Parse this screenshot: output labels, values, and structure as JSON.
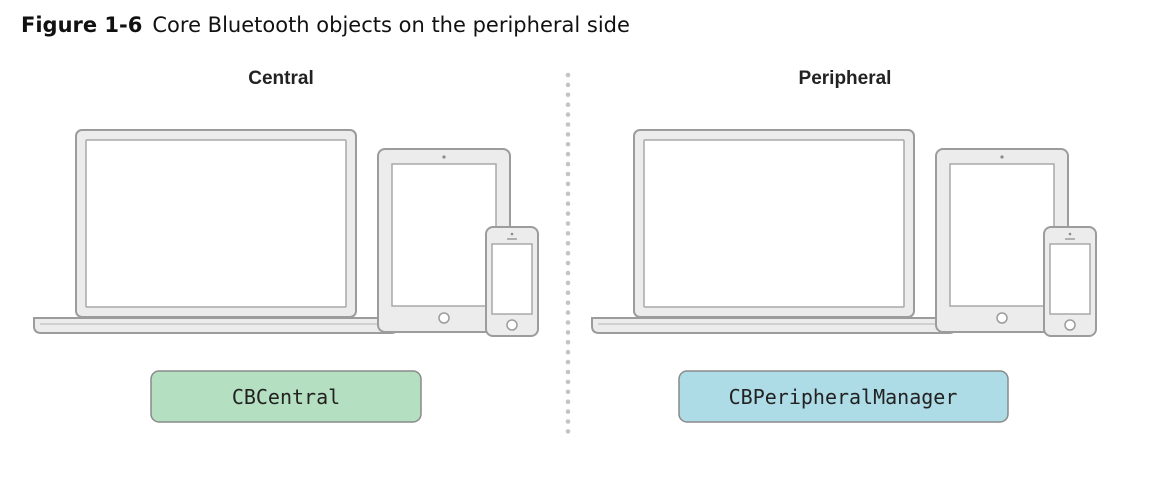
{
  "figure": {
    "number": "Figure 1-6",
    "title": "Core Bluetooth objects on the peripheral side"
  },
  "central": {
    "label": "Central",
    "object": "CBCentral",
    "object_fill": "#b5dfc1"
  },
  "peripheral": {
    "label": "Peripheral",
    "object": "CBPeripheralManager",
    "object_fill": "#addbe6"
  },
  "devices": [
    "laptop-icon",
    "tablet-icon",
    "phone-icon"
  ],
  "colors": {
    "device_stroke": "#9c9c9c",
    "device_fill": "#ececec",
    "screen_fill": "#ffffff",
    "divider": "#c4c4c4"
  }
}
